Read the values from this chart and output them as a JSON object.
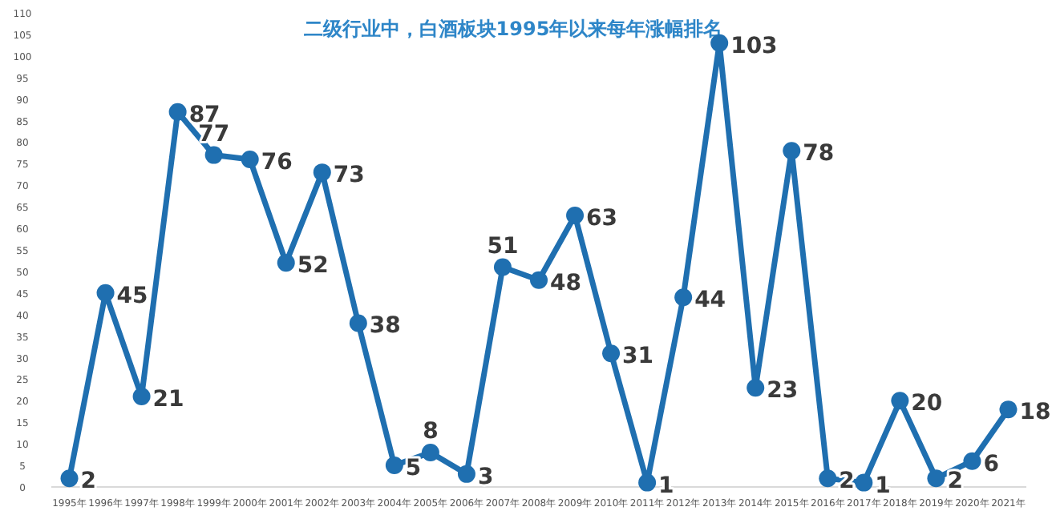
{
  "chart_data": {
    "type": "line",
    "title": "二级行业中，白酒板块1995年以来每年涨幅排名",
    "categories": [
      "1995年",
      "1996年",
      "1997年",
      "1998年",
      "1999年",
      "2000年",
      "2001年",
      "2002年",
      "2003年",
      "2004年",
      "2005年",
      "2006年",
      "2007年",
      "2008年",
      "2009年",
      "2010年",
      "2011年",
      "2012年",
      "2013年",
      "2014年",
      "2015年",
      "2016年",
      "2017年",
      "2018年",
      "2019年",
      "2020年",
      "2021年"
    ],
    "series": [
      {
        "color": "#1f6fb0",
        "values": [
          2,
          45,
          21,
          87,
          77,
          76,
          52,
          73,
          38,
          5,
          8,
          3,
          51,
          48,
          63,
          31,
          1,
          44,
          103,
          23,
          78,
          2,
          1,
          20,
          2,
          6,
          18
        ]
      }
    ],
    "ylim": [
      0,
      110
    ],
    "yticks": [
      0,
      5,
      10,
      15,
      20,
      25,
      30,
      35,
      40,
      45,
      50,
      55,
      60,
      65,
      70,
      75,
      80,
      85,
      90,
      95,
      100,
      105,
      110
    ],
    "marker": "circle",
    "data_labels": true,
    "grid": false
  }
}
